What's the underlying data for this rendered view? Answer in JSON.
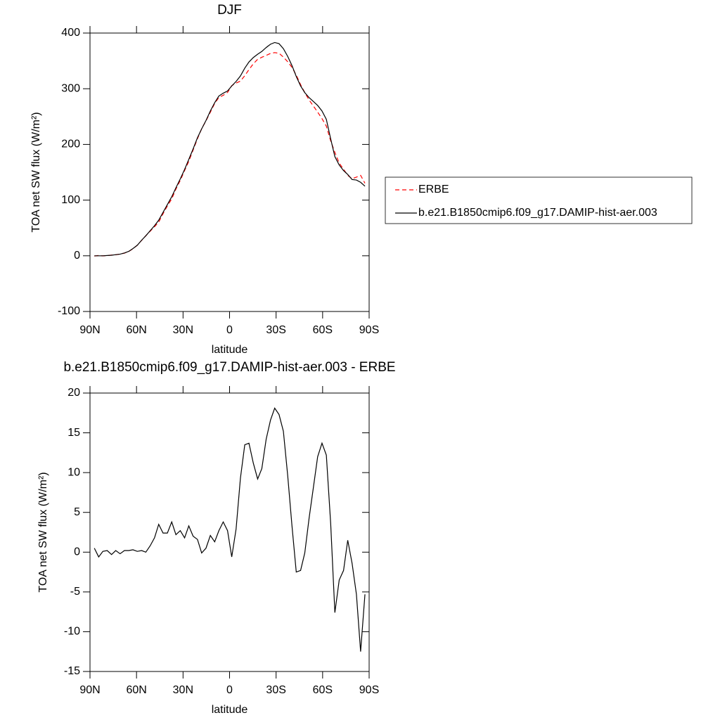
{
  "chart_data": [
    {
      "type": "line",
      "title": "DJF",
      "xlabel": "latitude",
      "ylabel": "TOA net SW flux (W/m²)",
      "x": [
        87.2,
        84.4,
        81.7,
        78.9,
        76.1,
        73.4,
        70.6,
        67.8,
        65.0,
        62.3,
        59.5,
        56.7,
        54.0,
        51.2,
        48.4,
        45.7,
        42.9,
        40.1,
        37.3,
        34.6,
        31.8,
        29.0,
        26.3,
        23.5,
        20.7,
        18.0,
        15.2,
        12.4,
        9.6,
        6.9,
        4.1,
        1.3,
        -1.4,
        -4.2,
        -7.0,
        -9.8,
        -12.5,
        -15.3,
        -18.1,
        -20.8,
        -23.6,
        -26.4,
        -29.1,
        -31.9,
        -34.7,
        -37.5,
        -40.2,
        -43.0,
        -45.8,
        -48.5,
        -51.3,
        -54.1,
        -56.8,
        -59.6,
        -62.4,
        -65.2,
        -67.9,
        -70.7,
        -73.5,
        -76.2,
        -79.0,
        -81.8,
        -84.5,
        -87.3
      ],
      "series": [
        {
          "name": "ERBE",
          "color": "#ff0000",
          "dashed": true,
          "values": [
            -0.5,
            0.6,
            -0.1,
            0.3,
            1.3,
            1.8,
            3.2,
            4.8,
            7.8,
            12.7,
            18.9,
            27.8,
            36,
            44.2,
            52.2,
            60.5,
            75.6,
            89.6,
            102.2,
            119.8,
            135.3,
            153.2,
            169.7,
            190,
            210.4,
            228.1,
            242.5,
            257.9,
            273.7,
            284.3,
            288.2,
            293.3,
            305.6,
            310.1,
            313.7,
            323.5,
            334.3,
            344.8,
            352.8,
            356.5,
            359.8,
            363.4,
            364.9,
            363.7,
            356.8,
            348.4,
            338.6,
            324.5,
            307.3,
            293.1,
            279.7,
            268.8,
            258,
            246.3,
            232.8,
            206.4,
            185.6,
            166.5,
            155.3,
            144.5,
            138.4,
            141.3,
            144.5,
            130.3
          ]
        },
        {
          "name": "b.e21.B1850cmip6.f09_g17.DAMIP-hist-aer.003",
          "color": "#000000",
          "dashed": false,
          "values": [
            0,
            0,
            0,
            0.5,
            1,
            2,
            3,
            5,
            8,
            13,
            19,
            28,
            36,
            45,
            54,
            64,
            78,
            92,
            106,
            122,
            138,
            155,
            173,
            192,
            212,
            228,
            243,
            260,
            275,
            287,
            292,
            296,
            305,
            313,
            323,
            337,
            348,
            356,
            362,
            367,
            374,
            380,
            383,
            381,
            372,
            358,
            342,
            322,
            305,
            293,
            284,
            277,
            270,
            260,
            245,
            210,
            178,
            163,
            153,
            146,
            137,
            136,
            132,
            125
          ]
        }
      ],
      "xlim": [
        90,
        -90
      ],
      "xticks": [
        {
          "value": 90,
          "label": "90N"
        },
        {
          "value": 60,
          "label": "60N"
        },
        {
          "value": 30,
          "label": "30N"
        },
        0,
        {
          "value": -30,
          "label": "30S"
        },
        {
          "value": -60,
          "label": "60S"
        },
        {
          "value": -90,
          "label": "90S"
        }
      ],
      "ylim": [
        -100,
        400
      ],
      "yticks": [
        -100,
        0,
        100,
        200,
        300,
        400
      ],
      "legend": "right"
    },
    {
      "type": "line",
      "title": "b.e21.B1850cmip6.f09_g17.DAMIP-hist-aer.003 - ERBE",
      "xlabel": "latitude",
      "ylabel": "TOA net SW flux (W/m²)",
      "x": [
        87.2,
        84.4,
        81.7,
        78.9,
        76.1,
        73.4,
        70.6,
        67.8,
        65.0,
        62.3,
        59.5,
        56.7,
        54.0,
        51.2,
        48.4,
        45.7,
        42.9,
        40.1,
        37.3,
        34.6,
        31.8,
        29.0,
        26.3,
        23.5,
        20.7,
        18.0,
        15.2,
        12.4,
        9.6,
        6.9,
        4.1,
        1.3,
        -1.4,
        -4.2,
        -7.0,
        -9.8,
        -12.5,
        -15.3,
        -18.1,
        -20.8,
        -23.6,
        -26.4,
        -29.1,
        -31.9,
        -34.7,
        -37.5,
        -40.2,
        -43.0,
        -45.8,
        -48.5,
        -51.3,
        -54.1,
        -56.8,
        -59.6,
        -62.4,
        -65.2,
        -67.9,
        -70.7,
        -73.5,
        -76.2,
        -79.0,
        -81.8,
        -84.5,
        -87.3
      ],
      "series": [
        {
          "color": "#000000",
          "dashed": false,
          "values": [
            0.5,
            -0.6,
            0.1,
            0.2,
            -0.3,
            0.2,
            -0.2,
            0.2,
            0.2,
            0.3,
            0.1,
            0.2,
            0.0,
            0.8,
            1.8,
            3.5,
            2.4,
            2.4,
            3.8,
            2.2,
            2.7,
            1.8,
            3.3,
            2.0,
            1.6,
            -0.1,
            0.5,
            2.1,
            1.3,
            2.7,
            3.8,
            2.7,
            -0.6,
            2.9,
            9.3,
            13.5,
            13.7,
            11.2,
            9.2,
            10.5,
            14.2,
            16.6,
            18.1,
            17.3,
            15.2,
            9.6,
            3.4,
            -2.5,
            -2.3,
            -0.1,
            4.3,
            8.2,
            12.0,
            13.7,
            12.2,
            3.6,
            -7.6,
            -3.5,
            -2.3,
            1.5,
            -1.4,
            -5.3,
            -12.5,
            -5.3
          ]
        }
      ],
      "xlim": [
        90,
        -90
      ],
      "xticks": [
        {
          "value": 90,
          "label": "90N"
        },
        {
          "value": 60,
          "label": "60N"
        },
        {
          "value": 30,
          "label": "30N"
        },
        0,
        {
          "value": -30,
          "label": "30S"
        },
        {
          "value": -60,
          "label": "60S"
        },
        {
          "value": -90,
          "label": "90S"
        }
      ],
      "ylim": [
        -15,
        20
      ],
      "yticks": [
        -15,
        -10,
        -5,
        0,
        5,
        10,
        15,
        20
      ]
    }
  ]
}
